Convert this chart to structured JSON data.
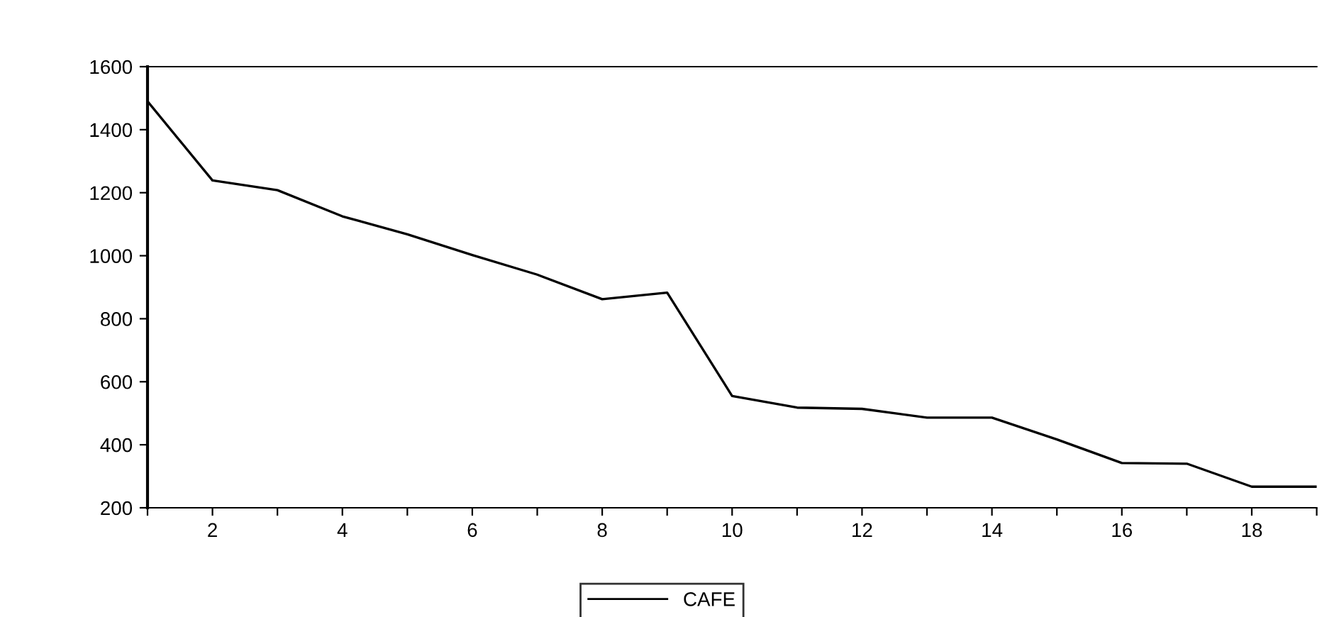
{
  "chart_data": {
    "type": "line",
    "x": [
      1,
      2,
      3,
      4,
      5,
      6,
      7,
      8,
      9,
      10,
      11,
      12,
      13,
      14,
      15,
      16,
      17,
      18,
      19
    ],
    "series": [
      {
        "name": "CAFE",
        "color": "#000000",
        "values": [
          1490,
          1239,
          1208,
          1125,
          1068,
          1002,
          940,
          862,
          883,
          555,
          518,
          514,
          486,
          486,
          417,
          342,
          340,
          267,
          267
        ]
      }
    ],
    "xlim": [
      1,
      19
    ],
    "ylim": [
      200,
      1600
    ],
    "xticks": [
      {
        "value": 1,
        "label": null
      },
      2,
      {
        "value": 3,
        "label": null
      },
      4,
      {
        "value": 5,
        "label": null
      },
      6,
      {
        "value": 7,
        "label": null
      },
      8,
      {
        "value": 9,
        "label": null
      },
      10,
      {
        "value": 11,
        "label": null
      },
      12,
      {
        "value": 13,
        "label": null
      },
      14,
      {
        "value": 15,
        "label": null
      },
      16,
      {
        "value": 17,
        "label": null
      },
      18,
      {
        "value": 19,
        "label": null
      }
    ],
    "yticks": [
      200,
      400,
      600,
      800,
      1000,
      1200,
      1400,
      1600
    ],
    "legend": "bottom",
    "grid": false,
    "marker": "none",
    "line_style": "solid"
  }
}
